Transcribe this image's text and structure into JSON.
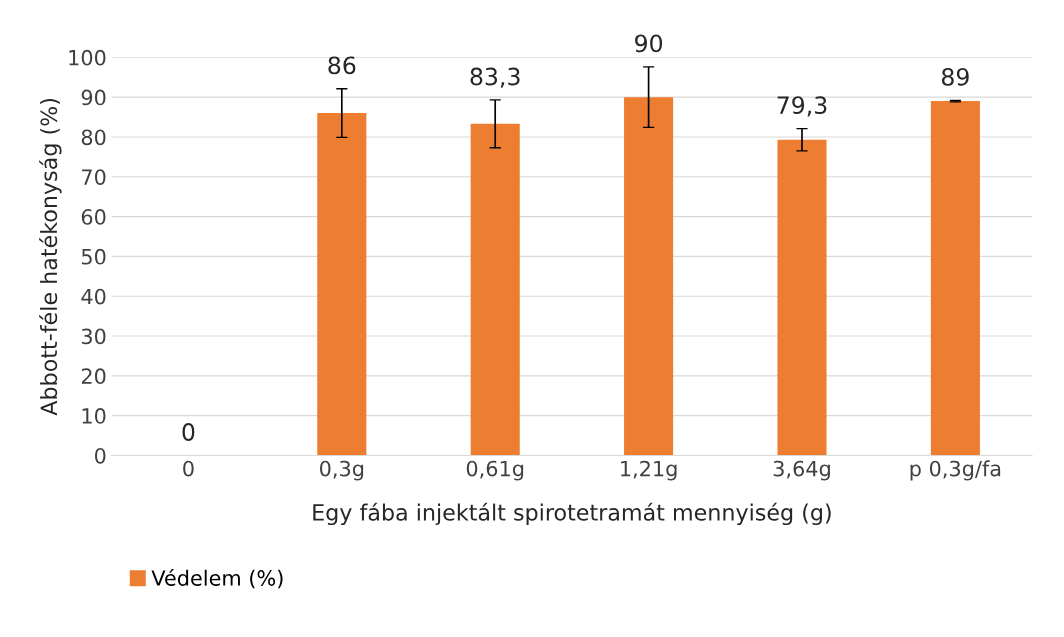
{
  "chart_data": {
    "type": "bar",
    "xlabel": "Egy fába injektált spirotetramát mennyiség (g)",
    "ylabel": "Abbott-féle hatékonyság (%)",
    "categories": [
      "0",
      "0,3g",
      "0,61g",
      "1,21g",
      "3,64g",
      "p 0,3g/fa"
    ],
    "series": [
      {
        "name": "Védelem (%)",
        "color": "#ed7d31",
        "values": [
          0,
          86,
          83.3,
          90,
          79.3,
          89
        ],
        "errors": [
          null,
          6.1,
          6,
          7.6,
          2.8,
          0.2
        ],
        "value_labels": [
          "0",
          "86",
          "83,3",
          "90",
          "79,3",
          "89"
        ]
      }
    ],
    "ylim": [
      0,
      100
    ],
    "yticks": [
      0,
      10,
      20,
      30,
      40,
      50,
      60,
      70,
      80,
      90,
      100
    ],
    "grid": "y",
    "legend": "bottom"
  }
}
